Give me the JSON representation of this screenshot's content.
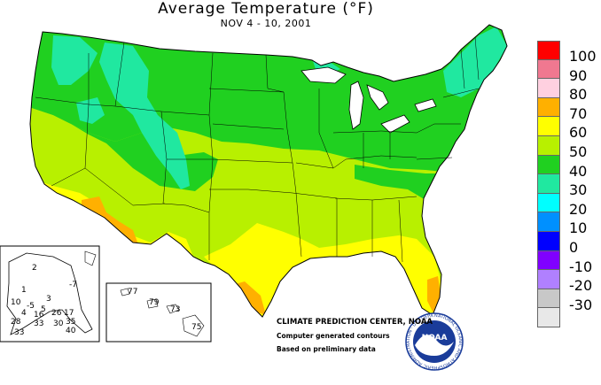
{
  "title": "Average Temperature",
  "title_unit": "(°F)",
  "subtitle": "NOV 4 - 10, 2001",
  "legend": {
    "items": [
      {
        "label": "100",
        "color": "#ff0000"
      },
      {
        "label": "90",
        "color": "#f07890"
      },
      {
        "label": "80",
        "color": "#ffd0e0"
      },
      {
        "label": "70",
        "color": "#ffb000"
      },
      {
        "label": "60",
        "color": "#ffff00"
      },
      {
        "label": "50",
        "color": "#b8f000"
      },
      {
        "label": "40",
        "color": "#20d020"
      },
      {
        "label": "30",
        "color": "#20e8a0"
      },
      {
        "label": "20",
        "color": "#00ffff"
      },
      {
        "label": "10",
        "color": "#0090ff"
      },
      {
        "label": "0",
        "color": "#0000ff"
      },
      {
        "label": "-10",
        "color": "#8000ff"
      },
      {
        "label": "-20",
        "color": "#b080ff"
      },
      {
        "label": "-30",
        "color": "#c8c8c8"
      }
    ],
    "bottom_color": "#e8e8e8"
  },
  "credits": {
    "center": "CLIMATE PREDICTION CENTER, NOAA",
    "line2": "Computer generated contours",
    "line3": "Based on preliminary data"
  },
  "logo": {
    "text": "NOAA",
    "ring_text": "NATIONAL OCEANIC AND ATMOSPHERIC ADMINISTRATION · U.S. DEPARTMENT OF COMMERCE"
  },
  "alaska_values": [
    "2",
    "-7",
    "1",
    "3",
    "10",
    "-5",
    "5",
    "26",
    "4",
    "16",
    "33",
    "17",
    "28",
    "30",
    "35",
    "33",
    "40"
  ],
  "hawaii_values": [
    "77",
    "79",
    "73",
    "75"
  ]
}
